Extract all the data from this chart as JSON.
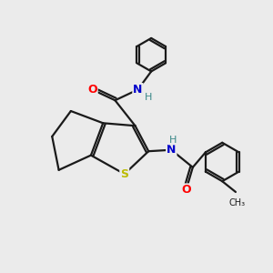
{
  "background_color": "#ebebeb",
  "bond_color": "#1a1a1a",
  "atom_colors": {
    "O": "#ff0000",
    "N": "#0000cc",
    "S": "#bbbb00",
    "H": "#3a8888",
    "C": "#1a1a1a"
  },
  "line_width": 1.6,
  "figsize": [
    3.0,
    3.0
  ],
  "dpi": 100
}
